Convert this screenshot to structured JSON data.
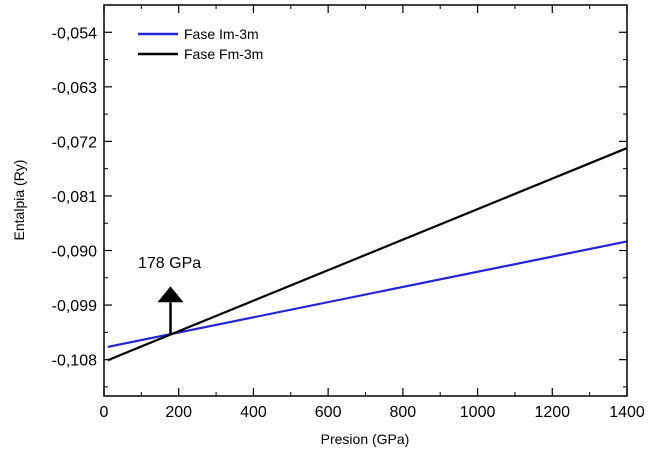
{
  "chart_data": {
    "type": "line",
    "xlabel": "Presion (GPa)",
    "ylabel": "Entalpia (Ry)",
    "xlim": [
      0,
      1400
    ],
    "ylim": [
      -0.114,
      -0.0495
    ],
    "x_ticks": [
      0,
      200,
      400,
      600,
      800,
      1000,
      1200,
      1400
    ],
    "x_tick_labels": [
      "0",
      "200",
      "400",
      "600",
      "800",
      "1000",
      "1200",
      "1400"
    ],
    "y_ticks": [
      -0.108,
      -0.099,
      -0.09,
      -0.081,
      -0.072,
      -0.063,
      -0.054
    ],
    "y_tick_labels": [
      "-0,108",
      "-0,099",
      "-0,090",
      "-0,081",
      "-0,072",
      "-0,063",
      "-0,054"
    ],
    "grid": false,
    "legend_position": "top-left",
    "series": [
      {
        "name": "Fase Im-3m",
        "color": "#2323d8",
        "x": [
          10,
          1400
        ],
        "y": [
          -0.1059,
          -0.0885
        ]
      },
      {
        "name": "Fase Fm-3m",
        "color": "#000000",
        "x": [
          10,
          1400
        ],
        "y": [
          -0.1081,
          -0.0731
        ]
      }
    ],
    "annotation": {
      "text": "178 GPa",
      "x": 178,
      "y_arrow_base": -0.1037,
      "y_arrow_tip": -0.0959
    }
  }
}
